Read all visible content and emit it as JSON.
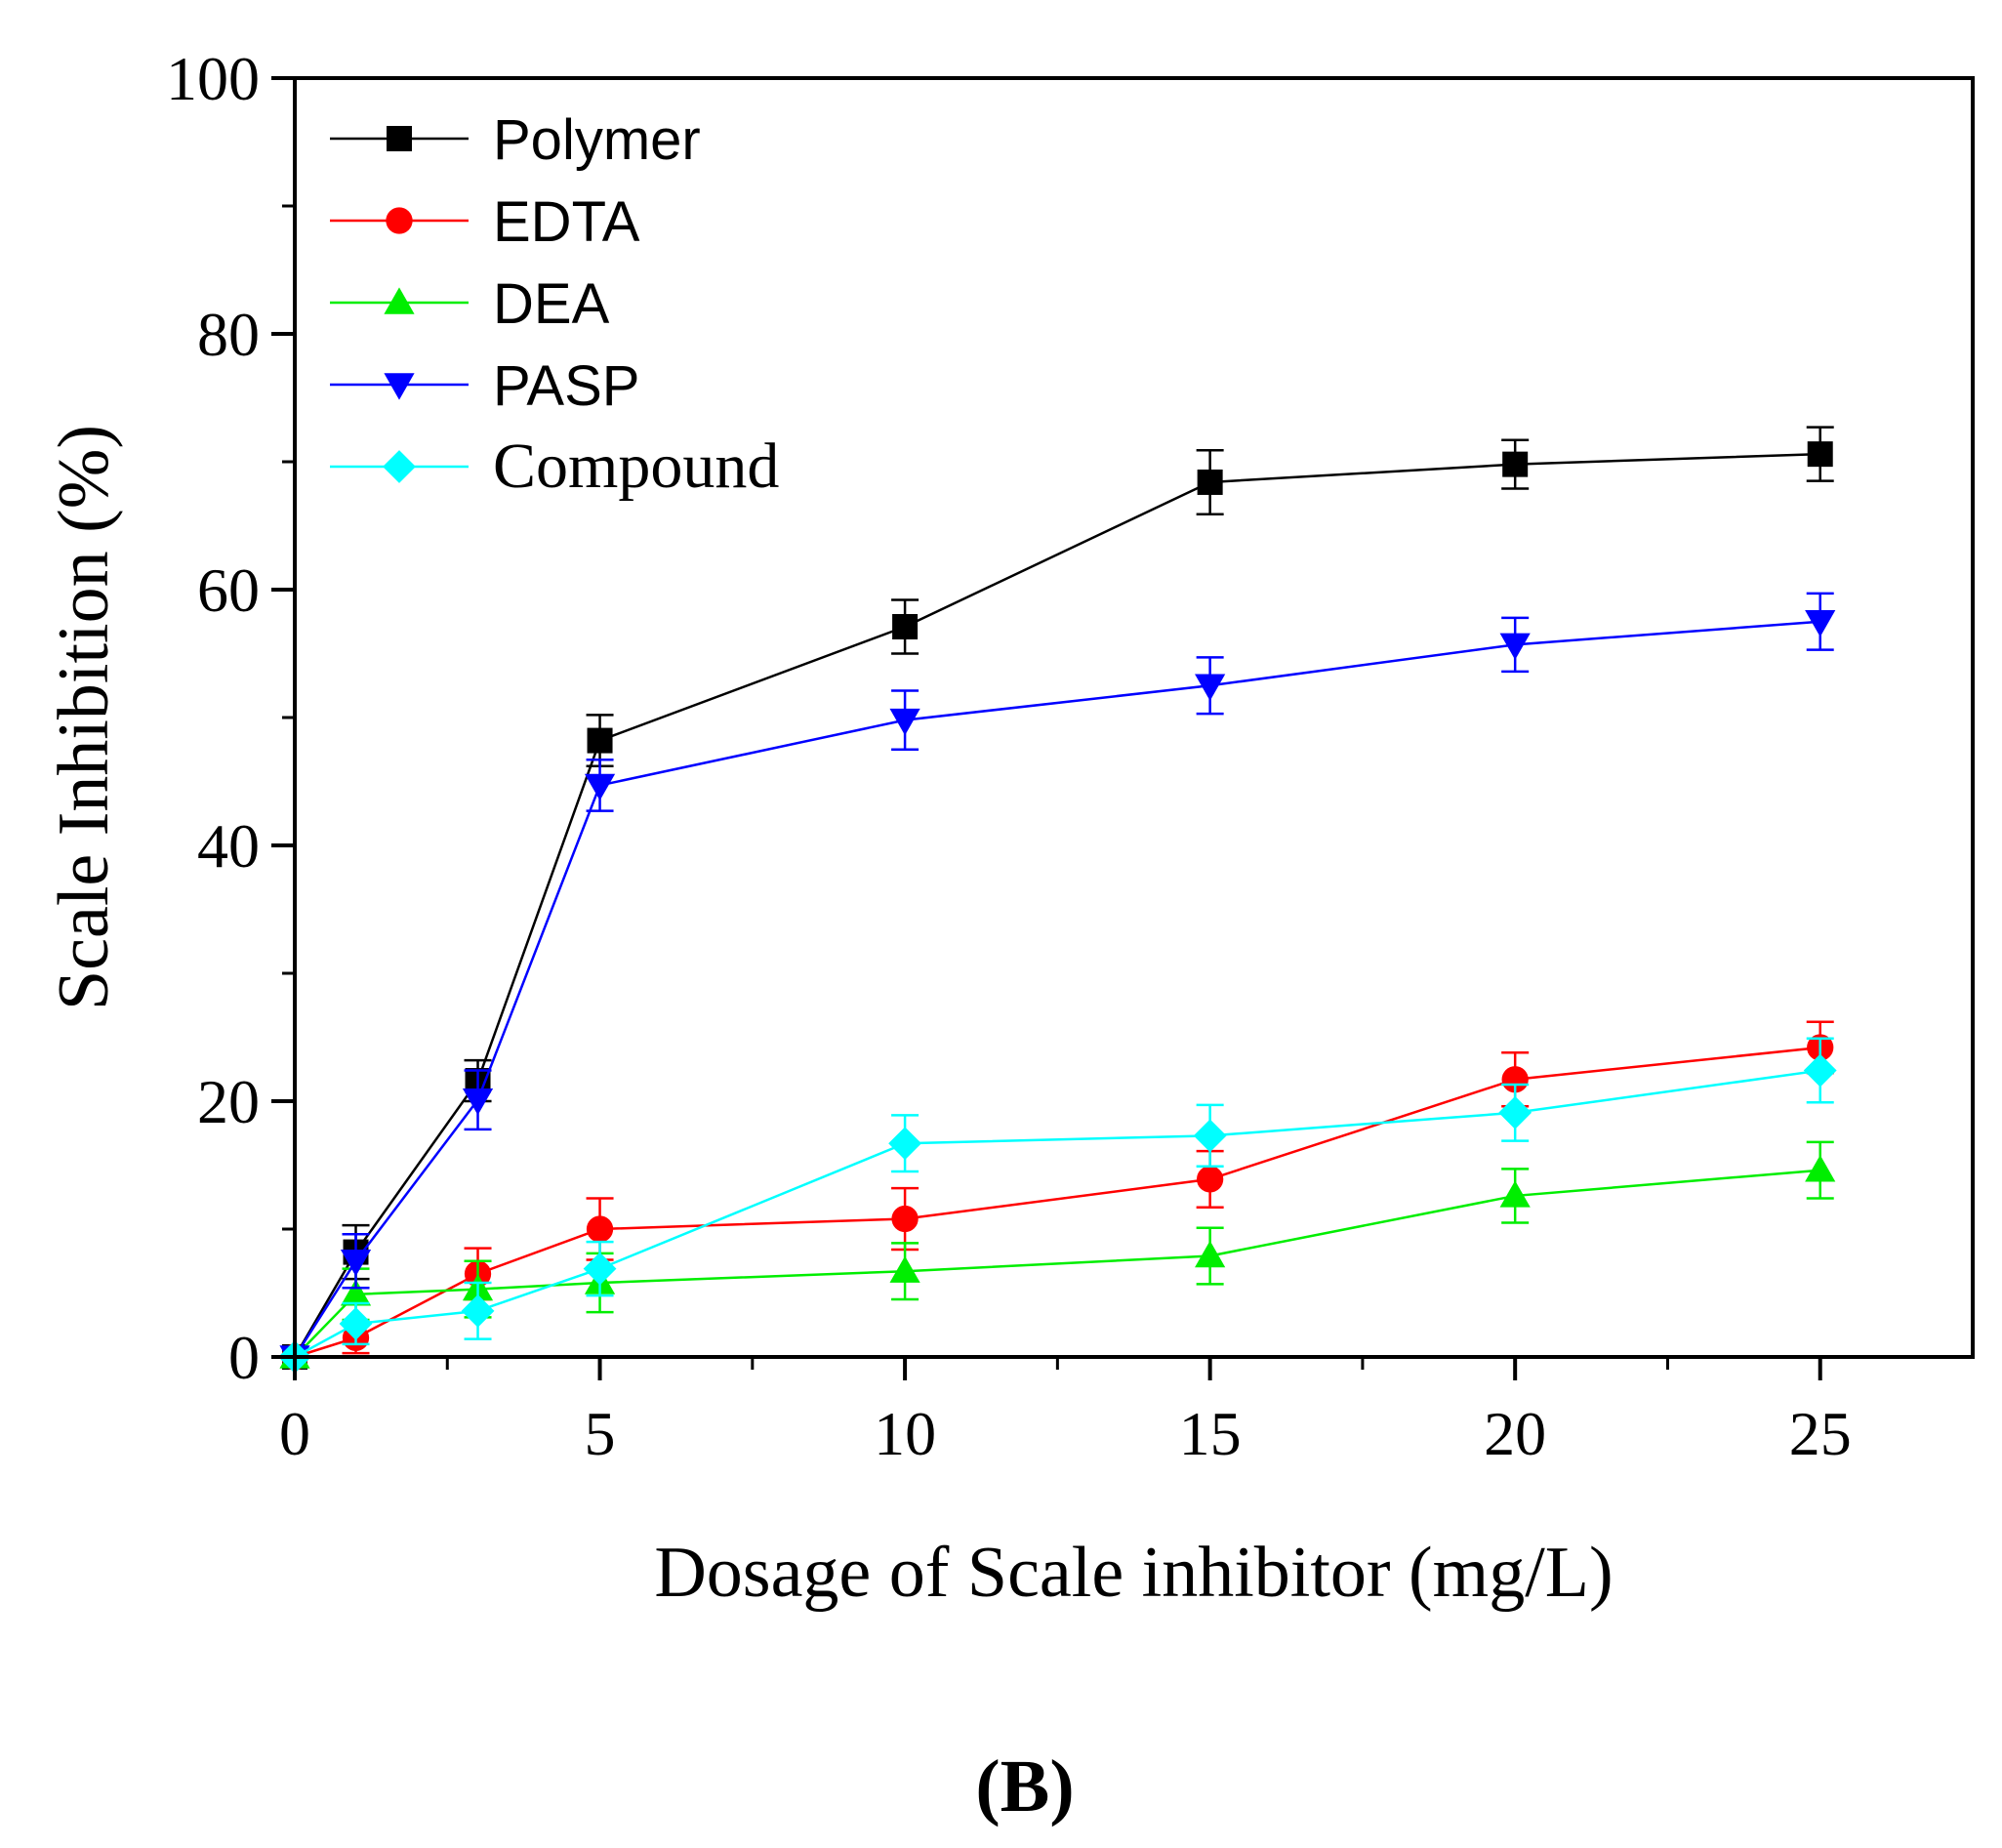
{
  "chart_data": {
    "type": "line",
    "title": "",
    "xlabel": "Dosage of Scale inhibitor (mg/L)",
    "ylabel": "Scale Inhibition (%)",
    "xlim": [
      0,
      27.5
    ],
    "ylim": [
      0,
      100
    ],
    "x_ticks": [
      0,
      5,
      10,
      15,
      20,
      25
    ],
    "y_ticks": [
      0,
      20,
      40,
      60,
      80,
      100
    ],
    "legend_position": "top-left",
    "grid": false,
    "panel_label": "(B)",
    "series": [
      {
        "name": "Polymer",
        "color": "#000000",
        "marker": "square",
        "x": [
          0,
          1,
          3,
          5,
          10,
          15,
          20,
          25
        ],
        "y": [
          0,
          8.2,
          21.6,
          48.2,
          57.1,
          68.4,
          69.8,
          70.6
        ],
        "error": [
          0,
          2.1,
          1.6,
          2.0,
          2.1,
          2.5,
          1.9,
          2.1
        ]
      },
      {
        "name": "EDTA",
        "color": "#ff0000",
        "marker": "circle",
        "x": [
          0,
          1,
          3,
          5,
          10,
          15,
          20,
          25
        ],
        "y": [
          0,
          1.5,
          6.5,
          10.0,
          10.8,
          13.9,
          21.7,
          24.2
        ],
        "error": [
          0,
          1.2,
          2.0,
          2.4,
          2.4,
          2.2,
          2.1,
          2.0
        ]
      },
      {
        "name": "DEA",
        "color": "#00ee00",
        "marker": "triangle-up",
        "x": [
          0,
          1,
          3,
          5,
          10,
          15,
          20,
          25
        ],
        "y": [
          0,
          4.9,
          5.3,
          5.8,
          6.7,
          7.9,
          12.6,
          14.6
        ],
        "error": [
          0,
          2.0,
          2.2,
          2.3,
          2.2,
          2.2,
          2.1,
          2.2
        ]
      },
      {
        "name": "PASP",
        "color": "#0000ff",
        "marker": "triangle-down",
        "x": [
          0,
          1,
          3,
          5,
          10,
          15,
          20,
          25
        ],
        "y": [
          0,
          7.5,
          20.1,
          44.7,
          49.8,
          52.5,
          55.7,
          57.5
        ],
        "error": [
          0,
          2.1,
          2.3,
          2.0,
          2.3,
          2.2,
          2.1,
          2.2
        ]
      },
      {
        "name": "Compound",
        "color": "#00ffff",
        "marker": "diamond",
        "x": [
          0,
          1,
          3,
          5,
          10,
          15,
          20,
          25
        ],
        "y": [
          0,
          2.6,
          3.6,
          6.9,
          16.7,
          17.3,
          19.1,
          22.4
        ],
        "error": [
          0,
          1.6,
          2.2,
          2.1,
          2.2,
          2.4,
          2.2,
          2.5
        ]
      }
    ]
  }
}
